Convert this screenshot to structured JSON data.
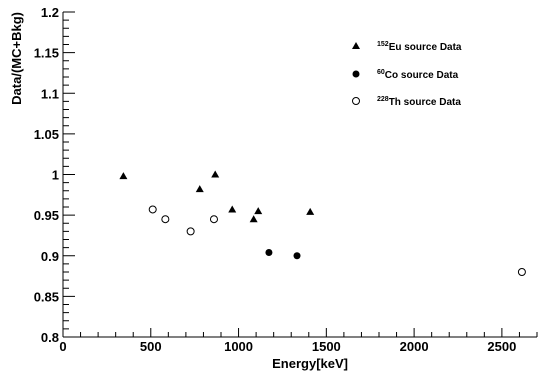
{
  "chart_data": {
    "type": "scatter",
    "xlabel": "Energy[keV]",
    "ylabel": "Data/(MC+Bkg)",
    "xlim": [
      0,
      2700
    ],
    "ylim": [
      0.8,
      1.2
    ],
    "x_ticks": [
      0,
      500,
      1000,
      1500,
      2000,
      2500
    ],
    "y_ticks": [
      0.8,
      0.85,
      0.9,
      0.95,
      1,
      1.05,
      1.1,
      1.15,
      1.2
    ],
    "x_tick_labels": [
      "0",
      "500",
      "1000",
      "1500",
      "2000",
      "2500"
    ],
    "y_tick_labels": [
      "0.8",
      "0.85",
      "0.9",
      "0.95",
      "1",
      "1.05",
      "1.1",
      "1.15",
      "1.2"
    ],
    "grid": false,
    "legend_position": "top-right",
    "series": [
      {
        "name": "152Eu source Data",
        "isotope_mass": "152",
        "isotope_label": "Eu source Data",
        "marker": "triangle",
        "points": [
          {
            "x": 344,
            "y": 0.998
          },
          {
            "x": 779,
            "y": 0.982
          },
          {
            "x": 867,
            "y": 1.0
          },
          {
            "x": 964,
            "y": 0.957
          },
          {
            "x": 1086,
            "y": 0.945
          },
          {
            "x": 1112,
            "y": 0.955
          },
          {
            "x": 1408,
            "y": 0.954
          }
        ]
      },
      {
        "name": "60Co source Data",
        "isotope_mass": "60",
        "isotope_label": "Co source Data",
        "marker": "filled-circle",
        "points": [
          {
            "x": 1173,
            "y": 0.904
          },
          {
            "x": 1333,
            "y": 0.9
          }
        ]
      },
      {
        "name": "228Th source Data",
        "isotope_mass": "228",
        "isotope_label": "Th source Data",
        "marker": "open-circle",
        "points": [
          {
            "x": 511,
            "y": 0.957
          },
          {
            "x": 583,
            "y": 0.945
          },
          {
            "x": 727,
            "y": 0.93
          },
          {
            "x": 860,
            "y": 0.945
          },
          {
            "x": 2614,
            "y": 0.88
          }
        ]
      }
    ]
  }
}
